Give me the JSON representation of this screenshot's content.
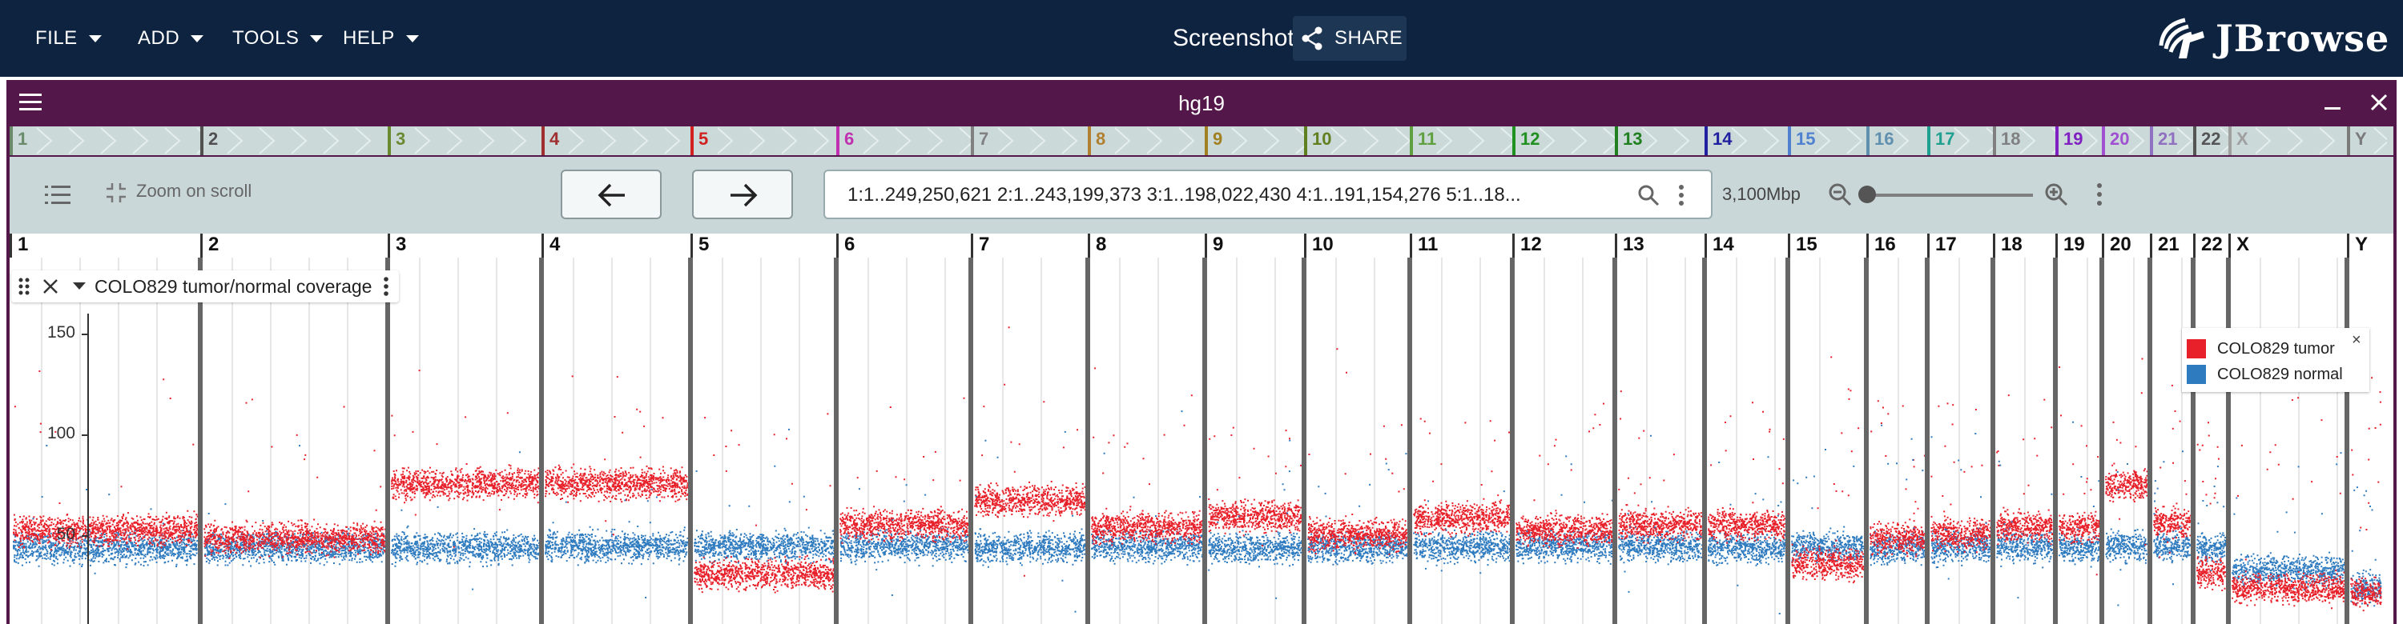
{
  "menu": [
    {
      "label": "FILE"
    },
    {
      "label": "ADD"
    },
    {
      "label": "TOOLS"
    },
    {
      "label": "HELP"
    }
  ],
  "session": {
    "title": "Screenshot",
    "share_label": "SHARE"
  },
  "brand": {
    "name": "JBrowse"
  },
  "view": {
    "assembly": "hg19"
  },
  "controls": {
    "zoom_on_scroll_label": "Zoom on scroll",
    "location": "1:1..249,250,621 2:1..243,199,373 3:1..198,022,430 4:1..191,154,276 5:1..18...",
    "bp_per_view": "3,100Mbp"
  },
  "chromosomes": [
    "1",
    "2",
    "3",
    "4",
    "5",
    "6",
    "7",
    "8",
    "9",
    "10",
    "11",
    "12",
    "13",
    "14",
    "15",
    "16",
    "17",
    "18",
    "19",
    "20",
    "21",
    "22",
    "X",
    "Y"
  ],
  "chromosome_colors": [
    "#6a8a6a",
    "#505050",
    "#6a8a30",
    "#a03030",
    "#d02020",
    "#c030b0",
    "#808080",
    "#b08030",
    "#a08020",
    "#608020",
    "#60a040",
    "#209020",
    "#208020",
    "#2020a0",
    "#5080d0",
    "#6090b0",
    "#20a090",
    "#808080",
    "#8020c0",
    "#a050d0",
    "#9070c0",
    "#555555",
    "#a0a0a0",
    "#7a7a7a"
  ],
  "track": {
    "name": "COLO829 tumor/normal coverage"
  },
  "legend": {
    "items": [
      {
        "label": "COLO829 tumor",
        "color": "#e8202a"
      },
      {
        "label": "COLO829 normal",
        "color": "#2f7bbf"
      }
    ],
    "close_symbol": "×"
  },
  "yaxis": {
    "ticks": [
      "150",
      "100",
      "50"
    ]
  },
  "colors": {
    "appbar": "#0d233f",
    "view_frame": "#541749",
    "tumor": "#e8202a",
    "normal": "#2f7bbf"
  }
}
